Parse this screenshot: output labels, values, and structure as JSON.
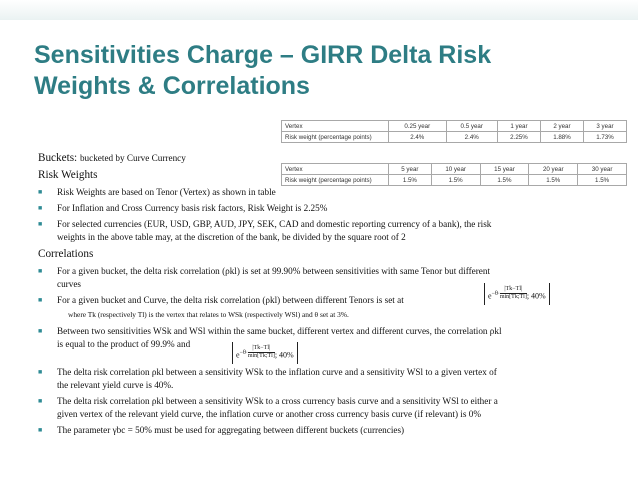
{
  "title": "Sensitivities Charge – GIRR Delta Risk Weights & Correlations",
  "table1": {
    "header": [
      "Vertex",
      "0.25 year",
      "0.5 year",
      "1 year",
      "2 year",
      "3 year"
    ],
    "row": [
      "Risk weight (percentage points)",
      "2.4%",
      "2.4%",
      "2.25%",
      "1.88%",
      "1.73%"
    ]
  },
  "table2": {
    "header": [
      "Vertex",
      "5 year",
      "10 year",
      "15 year",
      "20 year",
      "30 year"
    ],
    "row": [
      "Risk weight (percentage points)",
      "1.5%",
      "1.5%",
      "1.5%",
      "1.5%",
      "1.5%"
    ]
  },
  "buckets": {
    "label": "Buckets:",
    "text": "bucketed by Curve Currency"
  },
  "risk_weights_heading": "Risk Weights",
  "rw_bullets": [
    "Risk Weights are based on Tenor (Vertex) as shown in table",
    "For Inflation and Cross Currency basis risk factors, Risk Weight is 2.25%",
    "For selected currencies (EUR, USD, GBP, AUD, JPY, SEK, CAD and domestic reporting currency of a bank), the risk",
    "weights in the above table may, at  the discretion of the bank, be divided by the square root of 2"
  ],
  "correlations_heading": "Correlations",
  "corr": {
    "b1a": "For a given bucket, the delta risk correlation (ρkl) is set at 99.90% between sensitivities with same Tenor but different",
    "b1b": "curves",
    "b2": "For a given bucket and Curve, the delta risk correlation (ρkl) between different Tenors is set at",
    "b2_where": "where Tk (respectively Tl) is the vertex that relates to WSk (respectively WSl) and θ set at 3%.",
    "b3a": "Between two sensitivities WSk and WSl within the same bucket, different vertex and different curves, the correlation ρkl",
    "b3b": "is equal to the product of  99.9% and",
    "b4a": "The delta risk correlation ρkl between a sensitivity WSk to the inflation curve and a sensitivity WSl to a given vertex of",
    "b4b": "the relevant yield curve is 40%.",
    "b5a": "The delta risk correlation ρkl between a sensitivity WSk to a cross currency basis curve and a sensitivity WSl to either a",
    "b5b": "given vertex of the relevant yield curve, the inflation curve or another cross currency basis curve (if relevant) is 0%",
    "b6": "The parameter γbc = 50% must be used for aggregating between different buckets (currencies)"
  },
  "formula": {
    "exp_base": "e",
    "exponent_prefix": "−θ·",
    "numerator": "|Tk−Tl|",
    "denominator": "min[Tk;Tl]",
    "suffix": "; 40%"
  }
}
